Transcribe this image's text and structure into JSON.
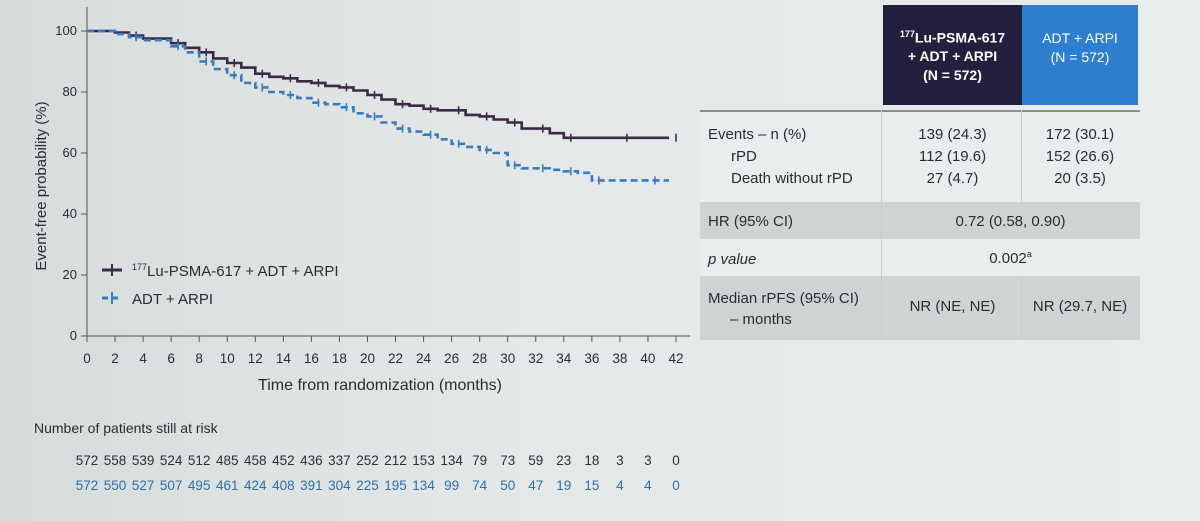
{
  "chart_data": {
    "type": "line",
    "xlabel": "Time from randomization (months)",
    "ylabel": "Event-free probability (%)",
    "xlim": [
      0,
      42
    ],
    "ylim": [
      0,
      100
    ],
    "x_ticks": [
      "0",
      "2",
      "4",
      "6",
      "8",
      "10",
      "12",
      "14",
      "16",
      "18",
      "20",
      "22",
      "24",
      "26",
      "28",
      "30",
      "32",
      "34",
      "36",
      "38",
      "40",
      "42"
    ],
    "y_ticks": [
      "0",
      "20",
      "40",
      "60",
      "80",
      "100"
    ],
    "legend_position": "bottom-left",
    "series": [
      {
        "name": "177Lu-PSMA-617 + ADT + ARPI",
        "color": "#3a2a45",
        "style": "solid",
        "points": [
          [
            0,
            100
          ],
          [
            2,
            99.5
          ],
          [
            3,
            98.5
          ],
          [
            4,
            97.5
          ],
          [
            6,
            96
          ],
          [
            7,
            94.5
          ],
          [
            8,
            93
          ],
          [
            9,
            91
          ],
          [
            10,
            89.5
          ],
          [
            11,
            88
          ],
          [
            12,
            86
          ],
          [
            13,
            85
          ],
          [
            14,
            84.5
          ],
          [
            15,
            83.5
          ],
          [
            16,
            83
          ],
          [
            17,
            82
          ],
          [
            18,
            81.5
          ],
          [
            19,
            80.5
          ],
          [
            20,
            79
          ],
          [
            21,
            77.5
          ],
          [
            22,
            76
          ],
          [
            23,
            75.5
          ],
          [
            24,
            74.5
          ],
          [
            25,
            74
          ],
          [
            26,
            74
          ],
          [
            27,
            72.5
          ],
          [
            28,
            72
          ],
          [
            29,
            71
          ],
          [
            30,
            70
          ],
          [
            31,
            68
          ],
          [
            32,
            68
          ],
          [
            33,
            66.5
          ],
          [
            34,
            65
          ],
          [
            36,
            65
          ],
          [
            38,
            65
          ],
          [
            40,
            65
          ],
          [
            41.5,
            65
          ]
        ]
      },
      {
        "name": "ADT + ARPI",
        "color": "#3a7bbf",
        "style": "dashed",
        "points": [
          [
            0,
            100
          ],
          [
            2,
            99
          ],
          [
            3,
            98
          ],
          [
            4,
            97
          ],
          [
            6,
            95
          ],
          [
            7,
            93
          ],
          [
            8,
            90
          ],
          [
            9,
            87.5
          ],
          [
            10,
            85.5
          ],
          [
            11,
            83
          ],
          [
            12,
            81.5
          ],
          [
            13,
            80
          ],
          [
            14,
            79
          ],
          [
            15,
            78
          ],
          [
            16,
            76.5
          ],
          [
            17,
            76
          ],
          [
            18,
            75
          ],
          [
            19,
            73
          ],
          [
            20,
            72
          ],
          [
            21,
            70
          ],
          [
            22,
            68
          ],
          [
            23,
            67
          ],
          [
            24,
            66
          ],
          [
            25,
            64.5
          ],
          [
            26,
            63
          ],
          [
            27,
            62
          ],
          [
            28,
            61
          ],
          [
            29,
            60
          ],
          [
            30,
            56
          ],
          [
            31,
            55
          ],
          [
            32,
            55
          ],
          [
            33,
            54.5
          ],
          [
            34,
            54
          ],
          [
            35,
            53.5
          ],
          [
            36,
            51
          ],
          [
            38,
            51
          ],
          [
            40,
            51
          ],
          [
            41.5,
            51
          ]
        ]
      }
    ],
    "at_risk": {
      "title": "Number of patients still at risk",
      "rows": [
        {
          "group": "177Lu-PSMA-617 + ADT + ARPI",
          "values": [
            "572",
            "558",
            "539",
            "524",
            "512",
            "485",
            "458",
            "452",
            "436",
            "337",
            "252",
            "212",
            "153",
            "134",
            "79",
            "73",
            "59",
            "23",
            "18",
            "3",
            "3",
            "0"
          ]
        },
        {
          "group": "ADT + ARPI",
          "values": [
            "572",
            "550",
            "527",
            "507",
            "495",
            "461",
            "424",
            "408",
            "391",
            "304",
            "225",
            "195",
            "134",
            "99",
            "74",
            "50",
            "47",
            "19",
            "15",
            "4",
            "4",
            "0"
          ]
        }
      ]
    }
  },
  "legend": {
    "item1_sup": "177",
    "item1_rest": "Lu-PSMA-617 + ADT + ARPI",
    "item2": "ADT + ARPI"
  },
  "table": {
    "header1_sup": "177",
    "header1_line1": "Lu-PSMA-617",
    "header1_line2": "+ ADT + ARPI",
    "header1_line3": "(N = 572)",
    "header2_line1": "ADT + ARPI",
    "header2_line2": "(N = 572)",
    "header1_color": "#23203f",
    "header2_color": "#2f7fd0",
    "events_label": "Events – n (%)",
    "events_a": "139 (24.3)",
    "events_b": "172 (30.1)",
    "rpd_label": "rPD",
    "rpd_a": "112 (19.6)",
    "rpd_b": "152 (26.6)",
    "death_label": "Death without rPD",
    "death_a": "27 (4.7)",
    "death_b": "20 (3.5)",
    "hr_label": "HR (95% CI)",
    "hr_value": "0.72 (0.58, 0.90)",
    "p_label": "p value",
    "p_value": "0.002",
    "p_sup": "a",
    "median_label_line1": "Median rPFS (95% CI)",
    "median_label_line2": "– months",
    "median_a": "NR (NE, NE)",
    "median_b": "NR (29.7, NE)"
  }
}
